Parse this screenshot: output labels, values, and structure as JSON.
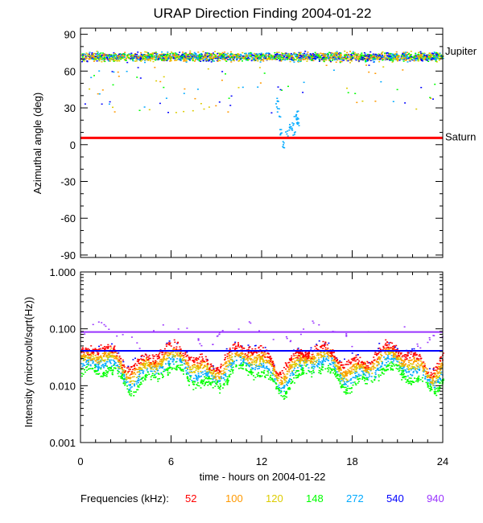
{
  "chart_data": [
    {
      "type": "scatter",
      "title": "URAP Direction Finding  2004-01-22",
      "xlabel": "time - hours on 2004-01-22",
      "ylabel": "Azimuthal angle (deg)",
      "xlim": [
        0,
        24
      ],
      "ylim": [
        -92,
        95
      ],
      "x_ticks": [
        "0",
        "6",
        "12",
        "18",
        "24"
      ],
      "y_ticks": [
        "90",
        "60",
        "30",
        "0",
        "-30",
        "-60",
        "-90"
      ],
      "reference_lines": [
        {
          "label": "Jupiter",
          "y": 72,
          "color": "#000000"
        },
        {
          "label": "Saturn",
          "y": 5.5,
          "color": "#ff0000"
        }
      ],
      "series": [
        {
          "name": "Jupiter direction band (52-940 kHz)",
          "center_deg": 72,
          "spread_deg": 5
        },
        {
          "name": "272 kHz excursion",
          "x": [
            13.0,
            13.1,
            13.2,
            13.4,
            13.6,
            13.8,
            14.0,
            14.1,
            14.2,
            14.3,
            14.4
          ],
          "y": [
            35,
            27,
            12,
            0,
            8,
            13,
            15,
            10,
            22,
            25,
            18
          ]
        }
      ]
    },
    {
      "type": "scatter",
      "xlabel": "time - hours on 2004-01-22",
      "ylabel": "Intensity (microvolt/sqrt(Hz))",
      "yscale": "log",
      "xlim": [
        0,
        24
      ],
      "ylim": [
        0.001,
        1.0
      ],
      "x_ticks": [
        "0",
        "6",
        "12",
        "18",
        "24"
      ],
      "y_ticks": [
        "1.000",
        "0.100",
        "0.010",
        "0.001"
      ],
      "series": [
        {
          "name": "940",
          "color": "#9933ff",
          "level": 0.088
        },
        {
          "name": "540",
          "color": "#0000ff",
          "level": 0.041
        },
        {
          "name": "272",
          "color": "#00aaff",
          "level": 0.02
        },
        {
          "name": "148",
          "color": "#00ff00",
          "level": 0.015
        },
        {
          "name": "120",
          "color": "#ddcc00",
          "level": 0.025
        },
        {
          "name": "100",
          "color": "#ff9900",
          "level": 0.028
        },
        {
          "name": "52",
          "color": "#ff0000",
          "level": 0.035
        }
      ]
    }
  ],
  "legend": {
    "label": "Frequencies (kHz):",
    "items": [
      {
        "label": "52",
        "color": "#ff0000"
      },
      {
        "label": "100",
        "color": "#ff9900"
      },
      {
        "label": "120",
        "color": "#ddcc00"
      },
      {
        "label": "148",
        "color": "#00ff00"
      },
      {
        "label": "272",
        "color": "#00aaff"
      },
      {
        "label": "540",
        "color": "#0000ff"
      },
      {
        "label": "940",
        "color": "#9933ff"
      }
    ]
  }
}
